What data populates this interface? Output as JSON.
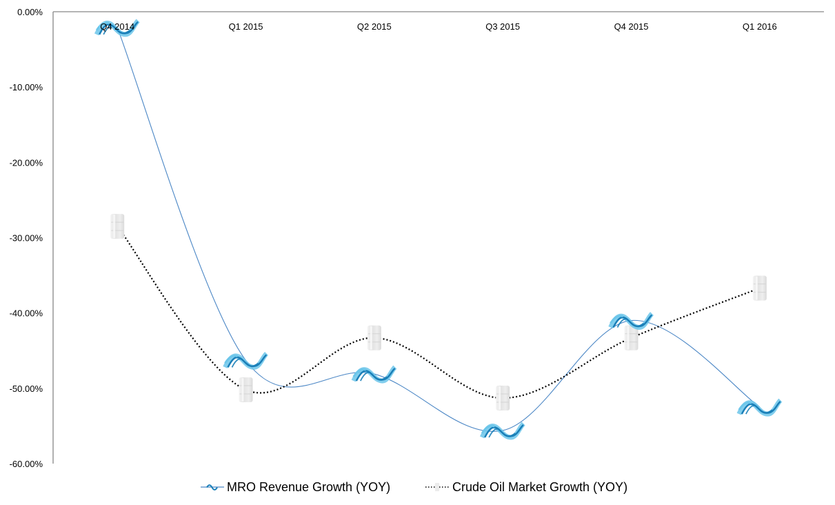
{
  "chart_data": {
    "type": "line",
    "title": "",
    "xlabel": "",
    "ylabel": "",
    "categories": [
      "Q4 2014",
      "Q1 2015",
      "Q2 2015",
      "Q3 2015",
      "Q4 2015",
      "Q1 2016"
    ],
    "ylim": [
      -60,
      0
    ],
    "y_ticks": [
      0,
      -10,
      -20,
      -30,
      -40,
      -50,
      -60
    ],
    "y_tick_labels": [
      "0.00%",
      "-10.00%",
      "-20.00%",
      "-30.00%",
      "-40.00%",
      "-50.00%",
      "-60.00%"
    ],
    "y_unit": "percent",
    "x_axis_position": "top",
    "grid": false,
    "smoothed": true,
    "legend_position": "bottom",
    "series": [
      {
        "name": "MRO Revenue Growth (YOY)",
        "values": [
          -2.1,
          -46.3,
          -48.1,
          -55.6,
          -41.0,
          -52.5
        ],
        "color": "#4a86c5",
        "line_style": "solid",
        "marker": "wave-logo"
      },
      {
        "name": "Crude Oil Market Growth (YOY)",
        "values": [
          -28.5,
          -50.2,
          -43.3,
          -51.3,
          -43.3,
          -36.7
        ],
        "color": "#000000",
        "line_style": "dotted",
        "marker": "oil-barrel"
      }
    ],
    "colors": {
      "axis": "#868686",
      "marker_wave_dark": "#1a7fb8",
      "marker_wave_light": "#6cc6ea",
      "marker_barrel": "#e6e6e6"
    }
  }
}
